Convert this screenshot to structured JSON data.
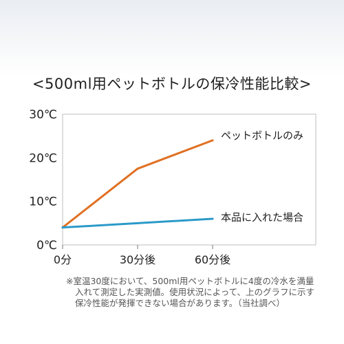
{
  "title": "<500ml用ペットボトルの保冷性能比較>",
  "note": [
    "※室温30度において、500ml用ペットボトルに4度の冷水を満量",
    "入れて測定した実測値。使用状況によって、上のグラフに示す",
    "保冷性能が発揮できない場合があります。（当社調べ）"
  ],
  "colors": {
    "pet_bottle": "#e07022",
    "product": "#2b9ac8",
    "frame": "#bcbcbc"
  },
  "chart_data": {
    "type": "line",
    "title": "<500ml用ペットボトルの保冷性能比較>",
    "x_categories": [
      "0分",
      "30分後",
      "60分後"
    ],
    "y_ticks": [
      "0℃",
      "10℃",
      "20℃",
      "30℃"
    ],
    "ylim": [
      0,
      30
    ],
    "grid": false,
    "series": [
      {
        "name": "ペットボトルのみ",
        "color": "#e07022",
        "values": [
          4,
          17.5,
          24
        ]
      },
      {
        "name": "本品に入れた場合",
        "color": "#2b9ac8",
        "values": [
          4,
          5,
          6
        ]
      }
    ]
  }
}
